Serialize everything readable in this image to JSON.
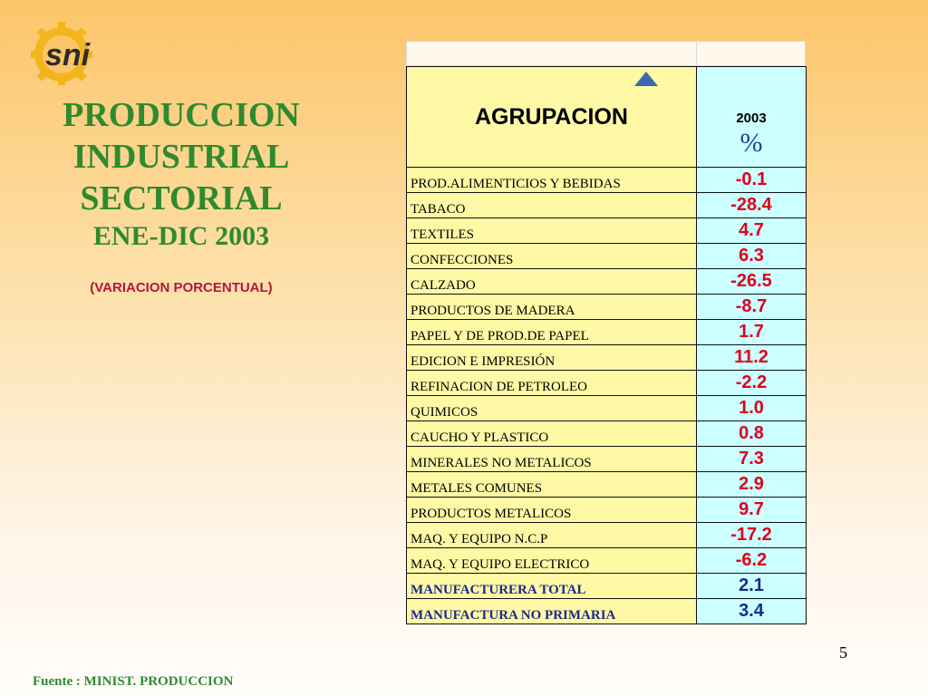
{
  "logo_text": "sni",
  "title": {
    "line1": "PRODUCCION",
    "line2": "INDUSTRIAL",
    "line3": "SECTORIAL",
    "period": "ENE-DIC 2003"
  },
  "subtitle": "(VARIACION PORCENTUAL)",
  "source": "Fuente : MINIST. PRODUCCION",
  "page_number": "5",
  "table": {
    "header_group": "AGRUPACION",
    "header_year": "2003",
    "header_unit": "%",
    "rows": [
      {
        "label": "PROD.ALIMENTICIOS Y BEBIDAS",
        "value": "-0.1"
      },
      {
        "label": "TABACO",
        "value": "-28.4"
      },
      {
        "label": "TEXTILES",
        "value": "4.7"
      },
      {
        "label": "CONFECCIONES",
        "value": "6.3"
      },
      {
        "label": "CALZADO",
        "value": "-26.5"
      },
      {
        "label": "PRODUCTOS DE MADERA",
        "value": "-8.7"
      },
      {
        "label": "PAPEL Y DE PROD.DE PAPEL",
        "value": "1.7"
      },
      {
        "label": "EDICION E IMPRESIÓN",
        "value": "11.2"
      },
      {
        "label": "REFINACION DE PETROLEO",
        "value": "-2.2"
      },
      {
        "label": "QUIMICOS",
        "value": "1.0"
      },
      {
        "label": "CAUCHO Y PLASTICO",
        "value": "0.8"
      },
      {
        "label": "MINERALES NO METALICOS",
        "value": "7.3"
      },
      {
        "label": "METALES COMUNES",
        "value": "2.9"
      },
      {
        "label": "PRODUCTOS METALICOS",
        "value": "9.7"
      },
      {
        "label": "MAQ. Y EQUIPO N.C.P",
        "value": "-17.2"
      },
      {
        "label": "MAQ. Y EQUIPO ELECTRICO",
        "value": "-6.2"
      }
    ],
    "totals": [
      {
        "label": "MANUFACTURERA TOTAL",
        "value": "2.1"
      },
      {
        "label": "MANUFACTURA NO PRIMARIA",
        "value": "3.4"
      }
    ]
  },
  "colors": {
    "title_green": "#2f8a2f",
    "subtitle_red": "#b5153b",
    "value_red": "#e0001b",
    "total_blue": "#1d2a8a",
    "label_bg": "#fff9a6",
    "value_bg": "#ccffff",
    "logo_gold": "#f2b51c"
  },
  "icons": {
    "logo": "gear-logo-icon",
    "sort": "triangle-up-icon"
  }
}
